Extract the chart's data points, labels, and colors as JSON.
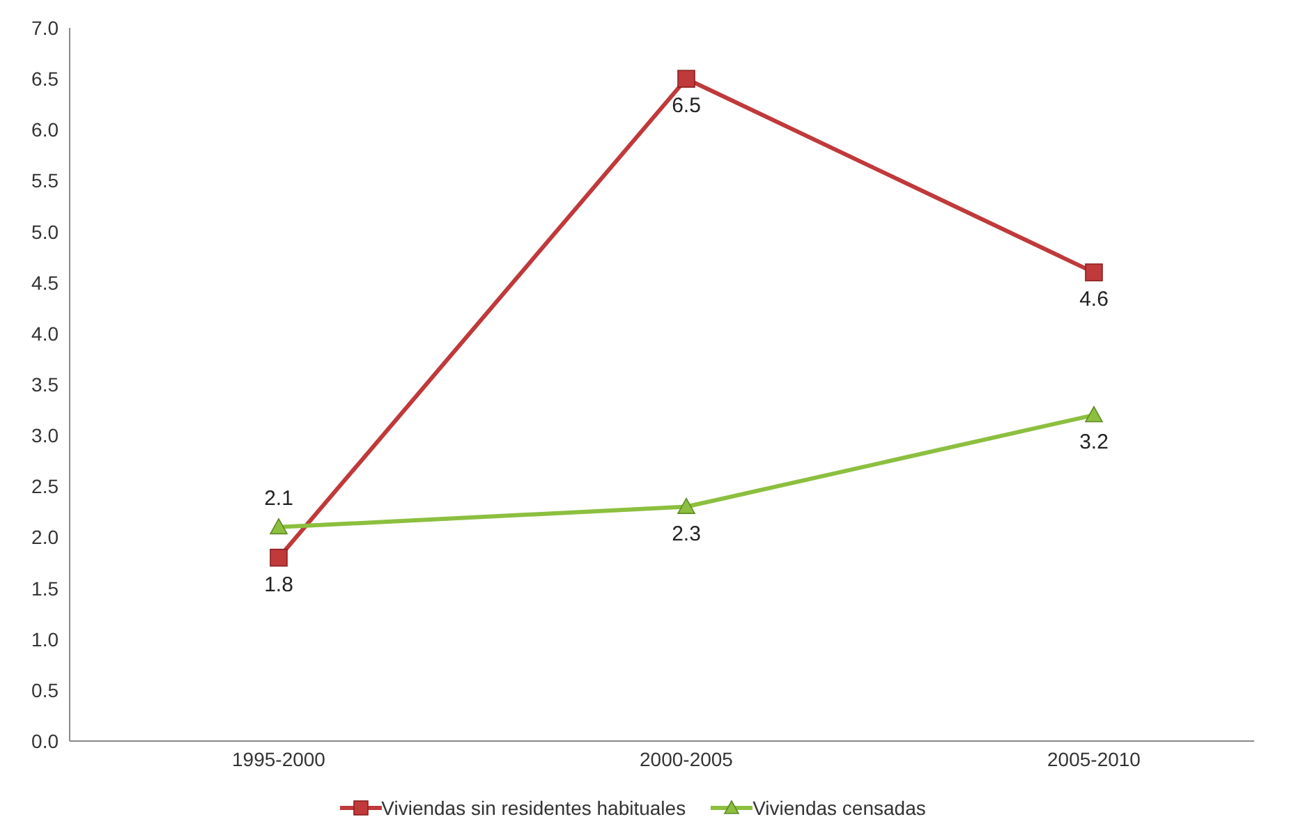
{
  "chart_data": {
    "type": "line",
    "categories": [
      "1995-2000",
      "2000-2005",
      "2005-2010"
    ],
    "series": [
      {
        "name": "Viviendas sin residentes habituales",
        "color": "#c0393b",
        "marker": "square",
        "values": [
          1.8,
          6.5,
          4.6
        ]
      },
      {
        "name": "Viviendas censadas",
        "color": "#8cbf3f",
        "marker": "triangle",
        "values": [
          2.1,
          2.3,
          3.2
        ]
      }
    ],
    "ylim": [
      0,
      7
    ],
    "yticks": [
      {
        "value": 0,
        "label": "0.0"
      },
      {
        "value": 0.5,
        "label": "0.5"
      },
      {
        "value": 1,
        "label": "1.0"
      },
      {
        "value": 1.5,
        "label": "1.5"
      },
      {
        "value": 2,
        "label": "2.0"
      },
      {
        "value": 2.5,
        "label": "2.5"
      },
      {
        "value": 3,
        "label": "3.0"
      },
      {
        "value": 3.5,
        "label": "3.5"
      },
      {
        "value": 4,
        "label": "4.0"
      },
      {
        "value": 4.5,
        "label": "4.5"
      },
      {
        "value": 5,
        "label": "5.0"
      },
      {
        "value": 5.5,
        "label": "5.5"
      },
      {
        "value": 6,
        "label": "6.0"
      },
      {
        "value": 6.5,
        "label": "6.5"
      },
      {
        "value": 7,
        "label": "7.0"
      }
    ],
    "grid": false,
    "legend": "bottom",
    "data_labels": true
  }
}
